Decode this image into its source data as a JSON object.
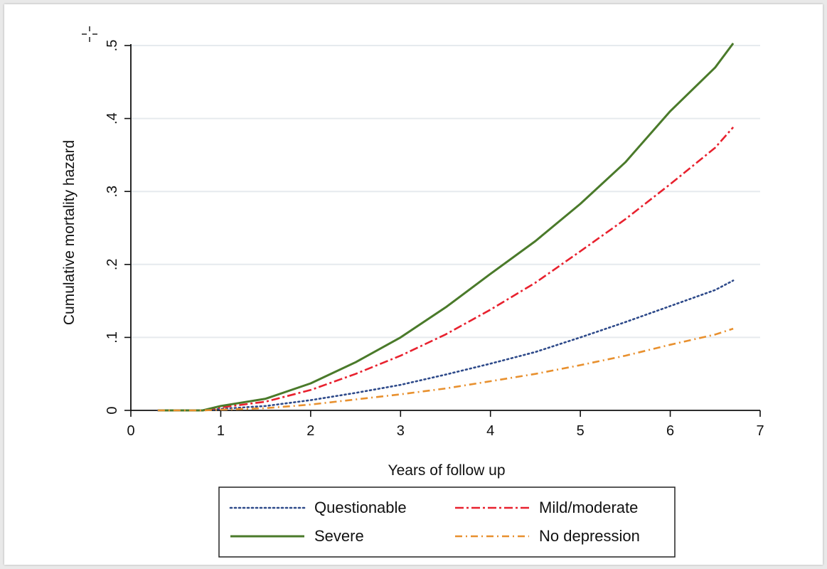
{
  "chart_data": {
    "type": "line",
    "title": "",
    "xlabel": "Years of follow up",
    "ylabel": "Cumulative mortality hazard",
    "xlim": [
      0,
      7
    ],
    "ylim": [
      0,
      0.5
    ],
    "x_ticks": [
      0,
      1,
      2,
      3,
      4,
      5,
      6,
      7
    ],
    "x_tick_labels": [
      "0",
      "1",
      "2",
      "3",
      "4",
      "5",
      "6",
      "7"
    ],
    "y_ticks": [
      0,
      0.1,
      0.2,
      0.3,
      0.4,
      0.5
    ],
    "y_tick_labels": [
      "0",
      ".1",
      ".2",
      ".3",
      ".4",
      ".5"
    ],
    "grid": "horizontal",
    "legend_position": "bottom",
    "series": [
      {
        "name": "Questionable",
        "color": "#2e4a8a",
        "style": "dotted",
        "x": [
          0.3,
          0.8,
          1.0,
          1.5,
          2.0,
          2.5,
          3.0,
          3.5,
          4.0,
          4.5,
          5.0,
          5.5,
          6.0,
          6.5,
          6.7
        ],
        "y": [
          0.0,
          0.0,
          0.002,
          0.006,
          0.014,
          0.024,
          0.035,
          0.049,
          0.064,
          0.08,
          0.1,
          0.121,
          0.143,
          0.165,
          0.178
        ]
      },
      {
        "name": "Mild/moderate",
        "color": "#e8212e",
        "style": "dash-dot",
        "x": [
          0.3,
          0.8,
          1.0,
          1.5,
          2.0,
          2.5,
          3.0,
          3.5,
          4.0,
          4.5,
          5.0,
          5.5,
          6.0,
          6.5,
          6.7
        ],
        "y": [
          0.0,
          0.0,
          0.004,
          0.012,
          0.028,
          0.05,
          0.075,
          0.104,
          0.138,
          0.175,
          0.218,
          0.262,
          0.31,
          0.36,
          0.388
        ]
      },
      {
        "name": "Severe",
        "color": "#4a7a2a",
        "style": "solid",
        "x": [
          0.3,
          0.8,
          1.0,
          1.5,
          2.0,
          2.5,
          3.0,
          3.5,
          4.0,
          4.5,
          5.0,
          5.5,
          6.0,
          6.5,
          6.7
        ],
        "y": [
          0.0,
          0.0,
          0.006,
          0.016,
          0.037,
          0.066,
          0.1,
          0.141,
          0.187,
          0.232,
          0.283,
          0.34,
          0.41,
          0.47,
          0.503
        ]
      },
      {
        "name": "No depression",
        "color": "#e8902e",
        "style": "dash-dot-long",
        "x": [
          0.3,
          0.8,
          1.0,
          1.5,
          2.0,
          2.5,
          3.0,
          3.5,
          4.0,
          4.5,
          5.0,
          5.5,
          6.0,
          6.5,
          6.7
        ],
        "y": [
          0.0,
          0.0,
          0.001,
          0.003,
          0.008,
          0.015,
          0.022,
          0.03,
          0.04,
          0.05,
          0.062,
          0.075,
          0.09,
          0.104,
          0.112
        ]
      }
    ],
    "legend": {
      "rows": [
        [
          "Questionable",
          "Mild/moderate"
        ],
        [
          "Severe",
          "No depression"
        ]
      ]
    }
  },
  "cursor_icon": "crosshair-cursor-icon"
}
